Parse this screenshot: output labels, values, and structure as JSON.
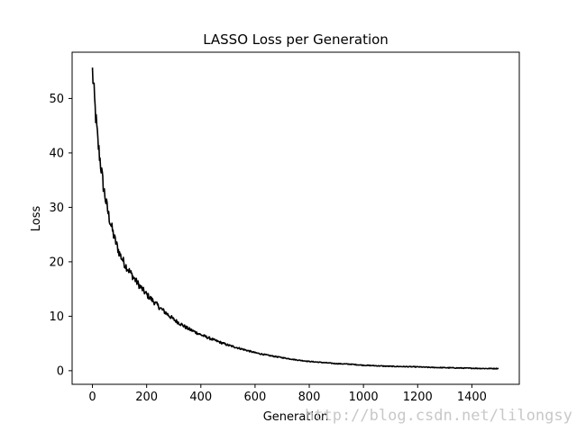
{
  "chart_data": {
    "type": "line",
    "title": "LASSO Loss per Generation",
    "xlabel": "Generation",
    "ylabel": "Loss",
    "xlim": [
      -75,
      1575
    ],
    "ylim": [
      -2.5,
      58.5
    ],
    "xticks": [
      0,
      200,
      400,
      600,
      800,
      1000,
      1200,
      1400
    ],
    "yticks": [
      0,
      10,
      20,
      30,
      40,
      50
    ],
    "grid": false,
    "legend": "none",
    "line_color": "#000000",
    "series": [
      {
        "x": [
          0,
          10,
          20,
          30,
          40,
          50,
          60,
          70,
          80,
          100,
          120,
          140,
          160,
          180,
          200,
          250,
          300,
          350,
          400,
          450,
          500,
          550,
          600,
          650,
          700,
          750,
          800,
          850,
          900,
          950,
          1000,
          1050,
          1100,
          1150,
          1200,
          1250,
          1300,
          1350,
          1400,
          1450,
          1499
        ],
        "y": [
          55,
          48,
          42,
          38,
          34,
          31,
          28.5,
          26.5,
          24.5,
          21.5,
          19.5,
          18,
          16.5,
          15.2,
          14,
          11.5,
          9.4,
          7.8,
          6.6,
          5.6,
          4.7,
          4,
          3.3,
          2.8,
          2.4,
          2,
          1.7,
          1.5,
          1.3,
          1.2,
          1,
          0.9,
          0.8,
          0.75,
          0.7,
          0.6,
          0.55,
          0.5,
          0.45,
          0.4,
          0.4
        ]
      }
    ]
  },
  "watermark": "http://blog.csdn.net/lilongsy"
}
